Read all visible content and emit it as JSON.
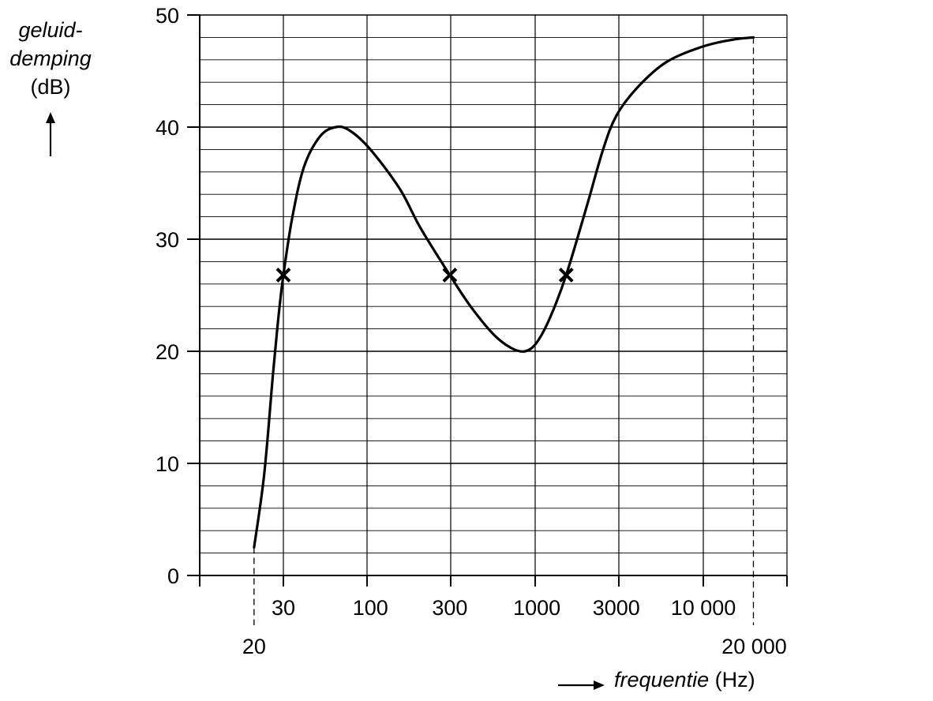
{
  "chart_data": {
    "type": "line",
    "ylabel_line1": "geluid-",
    "ylabel_line2": "demping",
    "ylabel_unit": "(dB)",
    "xlabel_text": "frequentie",
    "xlabel_unit": "(Hz)",
    "xscale": "log",
    "ylim": [
      0,
      50
    ],
    "yticks": [
      0,
      10,
      20,
      30,
      40,
      50
    ],
    "xticks": [
      {
        "value": 30,
        "label": "30"
      },
      {
        "value": 100,
        "label": "100"
      },
      {
        "value": 300,
        "label": "300"
      },
      {
        "value": 1000,
        "label": "1000"
      },
      {
        "value": 3000,
        "label": "3000"
      },
      {
        "value": 10000,
        "label": "10 000"
      }
    ],
    "marked_x": [
      {
        "value": 20,
        "label": "20"
      },
      {
        "value": 20000,
        "label": "20 000"
      }
    ],
    "grid": true,
    "series": [
      {
        "points": [
          [
            20,
            2.5
          ],
          [
            23,
            9
          ],
          [
            26,
            18
          ],
          [
            28,
            23
          ],
          [
            30,
            26.8
          ],
          [
            34,
            32
          ],
          [
            40,
            36.5
          ],
          [
            50,
            39.2
          ],
          [
            62,
            40
          ],
          [
            75,
            39.7
          ],
          [
            100,
            38
          ],
          [
            150,
            34.5
          ],
          [
            200,
            31
          ],
          [
            300,
            26.8
          ],
          [
            400,
            24
          ],
          [
            550,
            21.5
          ],
          [
            700,
            20.3
          ],
          [
            850,
            20
          ],
          [
            1000,
            20.8
          ],
          [
            1200,
            23
          ],
          [
            1500,
            26.8
          ],
          [
            2000,
            33
          ],
          [
            2500,
            38
          ],
          [
            3000,
            41
          ],
          [
            4000,
            43.5
          ],
          [
            6000,
            45.8
          ],
          [
            10000,
            47.2
          ],
          [
            15000,
            47.8
          ],
          [
            20000,
            48
          ]
        ]
      }
    ],
    "markers": [
      {
        "x": 30,
        "y": 26.8
      },
      {
        "x": 300,
        "y": 26.8
      },
      {
        "x": 1500,
        "y": 26.8
      }
    ],
    "colors": {
      "line": "#000000",
      "grid": "#000000",
      "background": "#ffffff"
    }
  }
}
